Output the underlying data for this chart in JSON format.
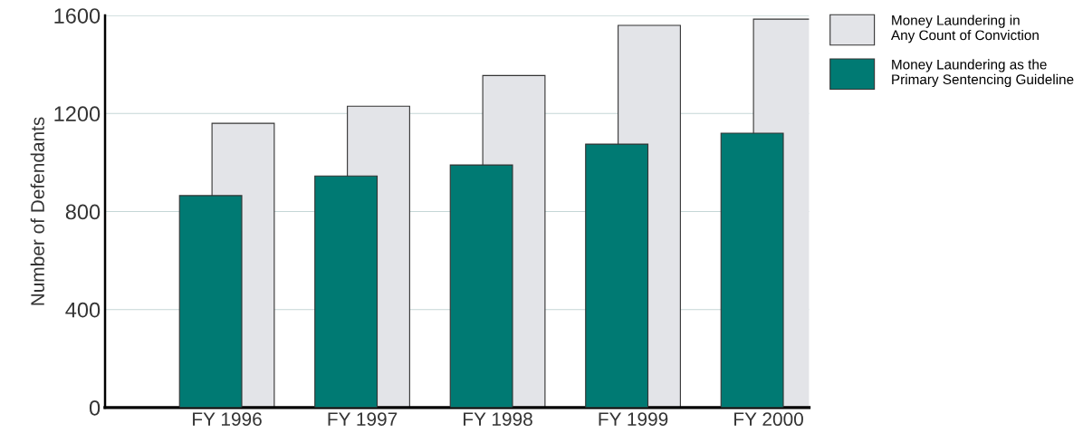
{
  "chart_data": {
    "type": "bar",
    "ylabel": "Number of Defendants",
    "categories": [
      "FY 1996",
      "FY 1997",
      "FY 1998",
      "FY 1999",
      "FY 2000"
    ],
    "series": [
      {
        "name": "Money Laundering in\nAny Count of Conviction",
        "color": "#e3e4e8",
        "values": [
          1160,
          1230,
          1355,
          1560,
          1585
        ]
      },
      {
        "name": "Money Laundering as the\nPrimary Sentencing Guideline",
        "color": "#007a73",
        "values": [
          865,
          945,
          990,
          1075,
          1120
        ]
      }
    ],
    "ylim": [
      0,
      1600
    ],
    "yticks": [
      0,
      400,
      800,
      1200,
      1600
    ],
    "grid": "y",
    "legend": "top right"
  }
}
